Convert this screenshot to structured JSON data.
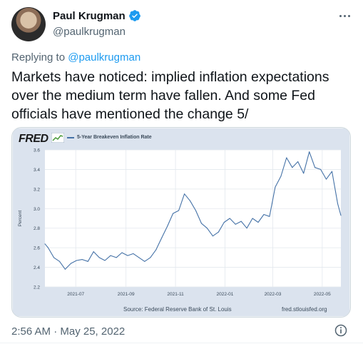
{
  "author": {
    "name": "Paul Krugman",
    "handle": "@paulkrugman"
  },
  "reply_prefix": "Replying to",
  "reply_to": "@paulkrugman",
  "tweet_text": "Markets have noticed: implied inflation expectations over the medium term have fallen. And some Fed officials have mentioned the change 5/",
  "timestamp": "2:56 AM · May 25, 2022",
  "colors": {
    "accent": "#1d9bf0",
    "series": "#4572a7",
    "plot_bg": "#ffffff",
    "card_bg": "#dbe3ee"
  },
  "icons": {
    "verified": "verified-badge-icon",
    "more": "more-icon",
    "info": "info-icon"
  },
  "chart": {
    "brand": "FRED",
    "source": "Source: Federal Reserve Bank of St. Louis",
    "site": "fred.stlouisfed.org"
  },
  "chart_data": {
    "type": "line",
    "title": "",
    "xlabel": "",
    "ylabel": "Percent",
    "ylim": [
      2.2,
      3.6
    ],
    "yticks": [
      2.2,
      2.4,
      2.6,
      2.8,
      3.0,
      3.2,
      3.4,
      3.6
    ],
    "xticks": [
      "2021-07",
      "2021-09",
      "2021-11",
      "2022-01",
      "2022-03",
      "2022-05"
    ],
    "grid": true,
    "legend": "top-left",
    "series": [
      {
        "name": "5-Year Breakeven Inflation Rate",
        "x": [
          "2021-05-24",
          "2021-05-28",
          "2021-06-04",
          "2021-06-11",
          "2021-06-18",
          "2021-06-25",
          "2021-07-02",
          "2021-07-09",
          "2021-07-16",
          "2021-07-23",
          "2021-07-30",
          "2021-08-06",
          "2021-08-13",
          "2021-08-20",
          "2021-08-27",
          "2021-09-03",
          "2021-09-10",
          "2021-09-17",
          "2021-09-24",
          "2021-10-01",
          "2021-10-08",
          "2021-10-15",
          "2021-10-22",
          "2021-10-29",
          "2021-11-05",
          "2021-11-12",
          "2021-11-19",
          "2021-11-26",
          "2021-12-03",
          "2021-12-10",
          "2021-12-17",
          "2021-12-24",
          "2021-12-31",
          "2022-01-07",
          "2022-01-14",
          "2022-01-21",
          "2022-01-28",
          "2022-02-04",
          "2022-02-11",
          "2022-02-18",
          "2022-02-25",
          "2022-03-04",
          "2022-03-11",
          "2022-03-18",
          "2022-03-25",
          "2022-04-01",
          "2022-04-08",
          "2022-04-15",
          "2022-04-22",
          "2022-04-29",
          "2022-05-06",
          "2022-05-13",
          "2022-05-20",
          "2022-05-24"
        ],
        "values": [
          2.64,
          2.6,
          2.5,
          2.46,
          2.38,
          2.44,
          2.47,
          2.48,
          2.46,
          2.56,
          2.5,
          2.47,
          2.52,
          2.5,
          2.55,
          2.52,
          2.54,
          2.5,
          2.46,
          2.5,
          2.58,
          2.7,
          2.82,
          2.95,
          2.98,
          3.15,
          3.08,
          2.98,
          2.85,
          2.8,
          2.72,
          2.76,
          2.86,
          2.9,
          2.84,
          2.87,
          2.8,
          2.9,
          2.86,
          2.94,
          2.92,
          3.22,
          3.33,
          3.52,
          3.42,
          3.48,
          3.36,
          3.58,
          3.42,
          3.4,
          3.3,
          3.38,
          3.05,
          2.93
        ]
      }
    ]
  }
}
